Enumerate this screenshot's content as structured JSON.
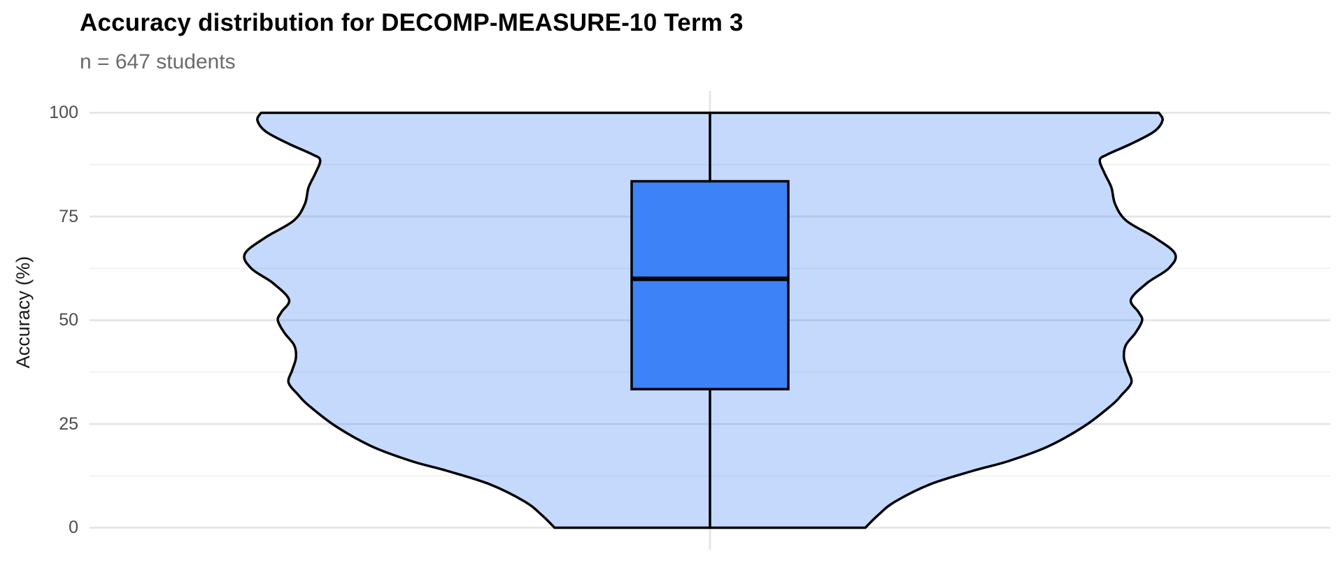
{
  "header": {
    "title": "Accuracy distribution for DECOMP-MEASURE-10 Term 3",
    "subtitle": "n = 647 students"
  },
  "y_axis": {
    "label": "Accuracy (%)"
  },
  "chart_data": {
    "type": "violin",
    "title": "Accuracy distribution for DECOMP-MEASURE-10 Term 3",
    "subtitle": "n = 647 students",
    "n_students": 647,
    "assessment": "DECOMP-MEASURE-10 Term 3",
    "ylabel": "Accuracy (%)",
    "xlabel": "",
    "ylim": [
      0,
      100
    ],
    "y_major_ticks": [
      0,
      25,
      50,
      75,
      100
    ],
    "y_minor_ticks": [
      12.5,
      37.5,
      62.5,
      87.5
    ],
    "grid": true,
    "legend_position": "none",
    "boxplot": {
      "median": 60,
      "q1": 33.4,
      "q3": 83.5,
      "whisker_low": 0,
      "whisker_high": 100
    },
    "violin_profile_note": "pairs of [accuracy_value, density_width_fraction_of_max], top to bottom; violin truncated flat at 0 and 100",
    "violin_profile": [
      [
        100,
        0.965
      ],
      [
        98.2,
        0.973
      ],
      [
        95.5,
        0.955
      ],
      [
        92.5,
        0.905
      ],
      [
        90,
        0.855
      ],
      [
        88.6,
        0.838
      ],
      [
        85.5,
        0.848
      ],
      [
        82,
        0.863
      ],
      [
        78,
        0.871
      ],
      [
        74,
        0.895
      ],
      [
        70,
        0.955
      ],
      [
        66,
        1.0
      ],
      [
        62.5,
        0.986
      ],
      [
        59,
        0.94
      ],
      [
        55,
        0.905
      ],
      [
        52,
        0.921
      ],
      [
        50,
        0.929
      ],
      [
        47,
        0.915
      ],
      [
        44,
        0.894
      ],
      [
        41,
        0.89
      ],
      [
        38,
        0.898
      ],
      [
        35,
        0.906
      ],
      [
        32,
        0.885
      ],
      [
        29.5,
        0.863
      ],
      [
        24.5,
        0.805
      ],
      [
        19.5,
        0.725
      ],
      [
        16,
        0.64
      ],
      [
        13.8,
        0.568
      ],
      [
        10.5,
        0.474
      ],
      [
        6.3,
        0.398
      ],
      [
        3,
        0.361
      ],
      [
        0,
        0.334
      ]
    ],
    "colors": {
      "box_fill": "#3e82f7",
      "violin_fill_rgba": "rgba(62,130,247,0.30)",
      "outline": "#000000",
      "grid_major": "#e4e4e4",
      "grid_minor": "#f0f0f0",
      "tick_label": "#4d4d4d",
      "subtitle_text": "#6a6a6a",
      "title_text": "#000000"
    }
  }
}
